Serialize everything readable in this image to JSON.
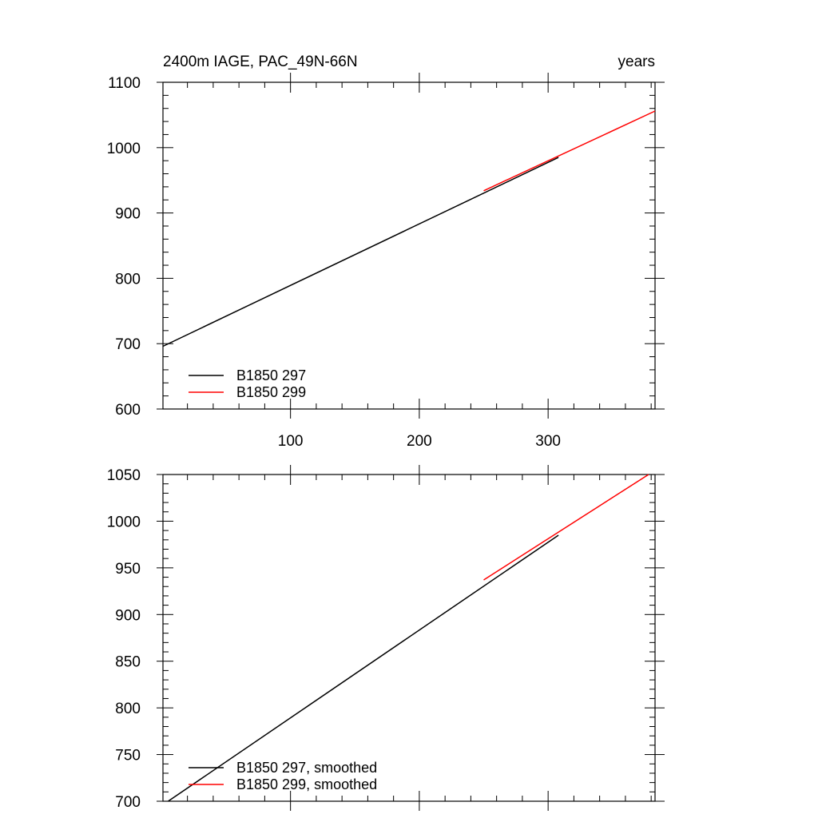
{
  "chart_data": [
    {
      "type": "line",
      "title_left": "2400m IAGE, PAC_49N-66N",
      "title_right": "years",
      "xlim": [
        1,
        383
      ],
      "ylim": [
        600,
        1100
      ],
      "yticks": [
        600,
        700,
        800,
        900,
        1000,
        1100
      ],
      "xticks": [
        100,
        200,
        300
      ],
      "xtick_labels_below": true,
      "grid": false,
      "legend_position": "bottom-left",
      "series": [
        {
          "name": "B1850 297",
          "color": "#000000",
          "x": [
            1,
            308
          ],
          "y": [
            696,
            985
          ]
        },
        {
          "name": "B1850 299",
          "color": "#ff0000",
          "x": [
            250,
            383
          ],
          "y": [
            934,
            1056
          ]
        }
      ]
    },
    {
      "type": "line",
      "title_left": "",
      "title_right": "",
      "xlim": [
        1,
        383
      ],
      "ylim": [
        700,
        1050
      ],
      "yticks": [
        700,
        750,
        800,
        850,
        900,
        950,
        1000,
        1050
      ],
      "xticks": [
        100,
        200,
        300
      ],
      "xtick_labels_below": false,
      "grid": false,
      "legend_position": "bottom-left",
      "series": [
        {
          "name": "B1850 297, smoothed",
          "color": "#000000",
          "x": [
            5,
            308
          ],
          "y": [
            700,
            985
          ]
        },
        {
          "name": "B1850 299, smoothed",
          "color": "#ff0000",
          "x": [
            250,
            378
          ],
          "y": [
            937,
            1050
          ]
        }
      ]
    }
  ]
}
